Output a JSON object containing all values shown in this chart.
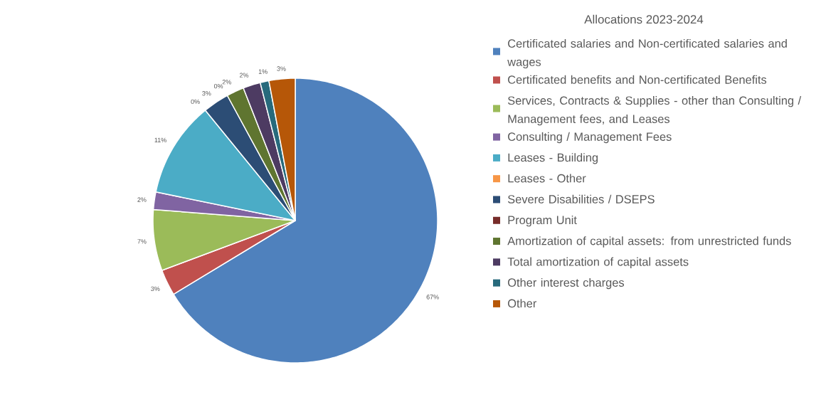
{
  "chart_data": {
    "type": "pie",
    "title": "Allocations 2023-2024",
    "categories": [
      "Certificated salaries and Non-certificated salaries and wages",
      "Certificated benefits and Non-certificated Benefits",
      "Services, Contracts & Supplies - other than Consulting / Management fees, and Leases",
      "Consulting / Management Fees",
      "Leases - Building",
      "Leases - Other",
      "Severe Disabilities / DSEPS",
      "Program Unit",
      "Amortization of capital assets: from unrestricted funds",
      "Total amortization of capital assets",
      "Other interest charges",
      "Other"
    ],
    "values": [
      67,
      3,
      7,
      2,
      11,
      0,
      3,
      0,
      2,
      2,
      1,
      3
    ],
    "value_labels": [
      "67%",
      "3%",
      "7%",
      "2%",
      "11%",
      "0%",
      "3%",
      "0%",
      "2%",
      "2%",
      "1%",
      "3%"
    ],
    "colors": [
      "#4f81bd",
      "#c0504d",
      "#9bbb59",
      "#8064a2",
      "#4bacc6",
      "#f79646",
      "#2c4d75",
      "#772c2a",
      "#5f7530",
      "#4d3b62",
      "#276a7c",
      "#b65708"
    ],
    "legend": "right"
  }
}
